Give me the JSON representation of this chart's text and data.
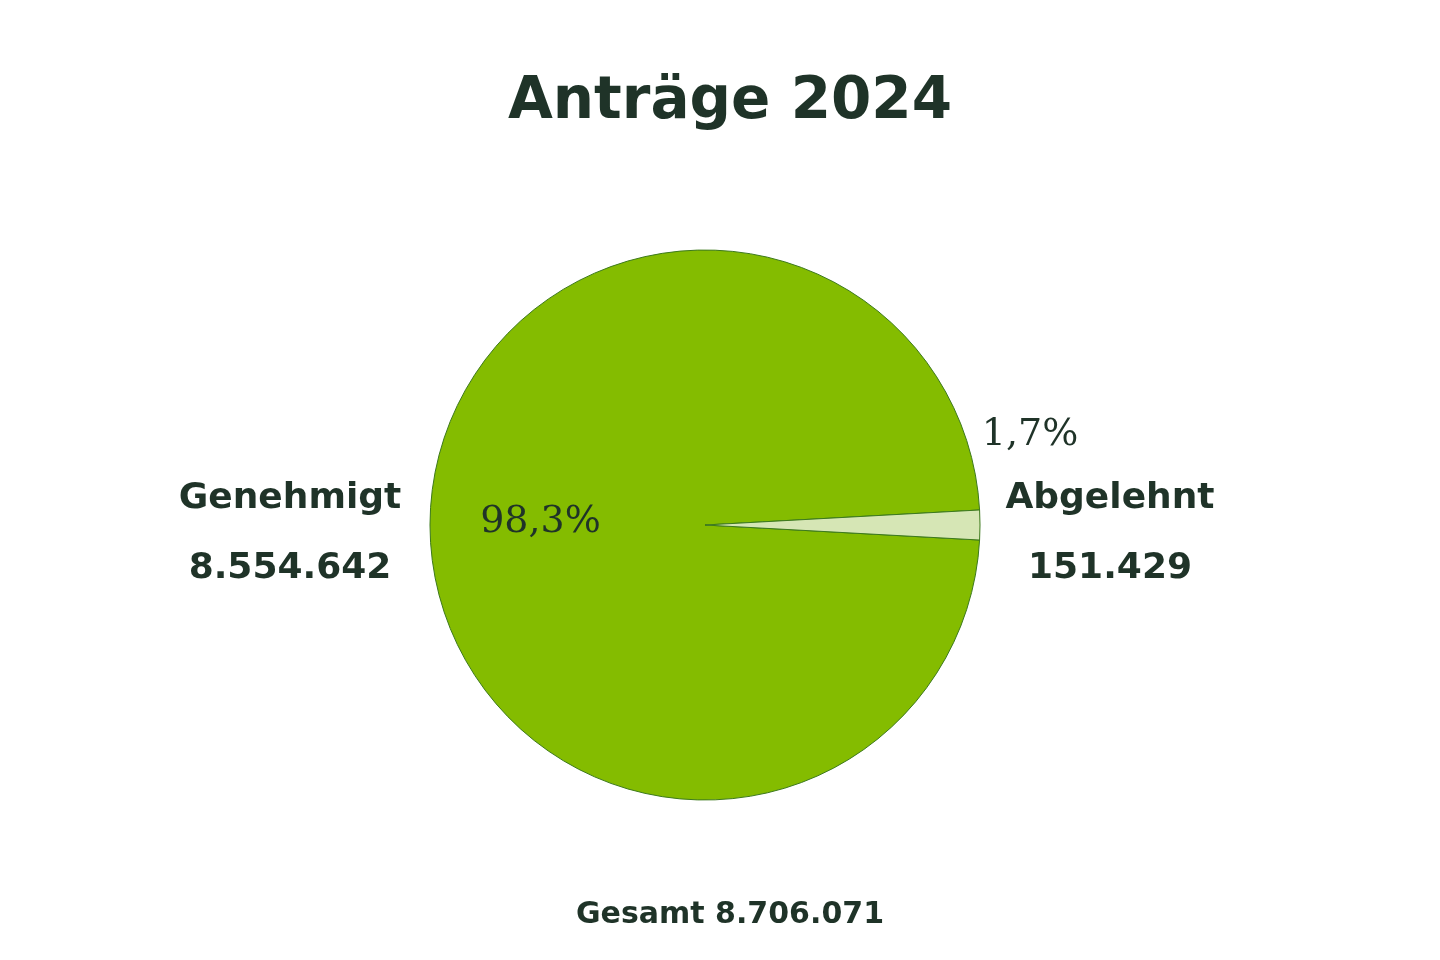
{
  "chart_data": {
    "type": "pie",
    "title": "Anträge 2024",
    "categories": [
      "Genehmigt",
      "Abgelehnt"
    ],
    "values": [
      8554642,
      151429
    ],
    "value_labels": [
      "8.554.642",
      "151.429"
    ],
    "colors": [
      "#84bc00",
      "#d6e6b5"
    ],
    "annotations": [
      {
        "text": "98,3%",
        "x": "Genehmigt"
      },
      {
        "text": "1,7%",
        "x": "Abgelehnt"
      },
      "Gesamt 8.706.071"
    ]
  }
}
